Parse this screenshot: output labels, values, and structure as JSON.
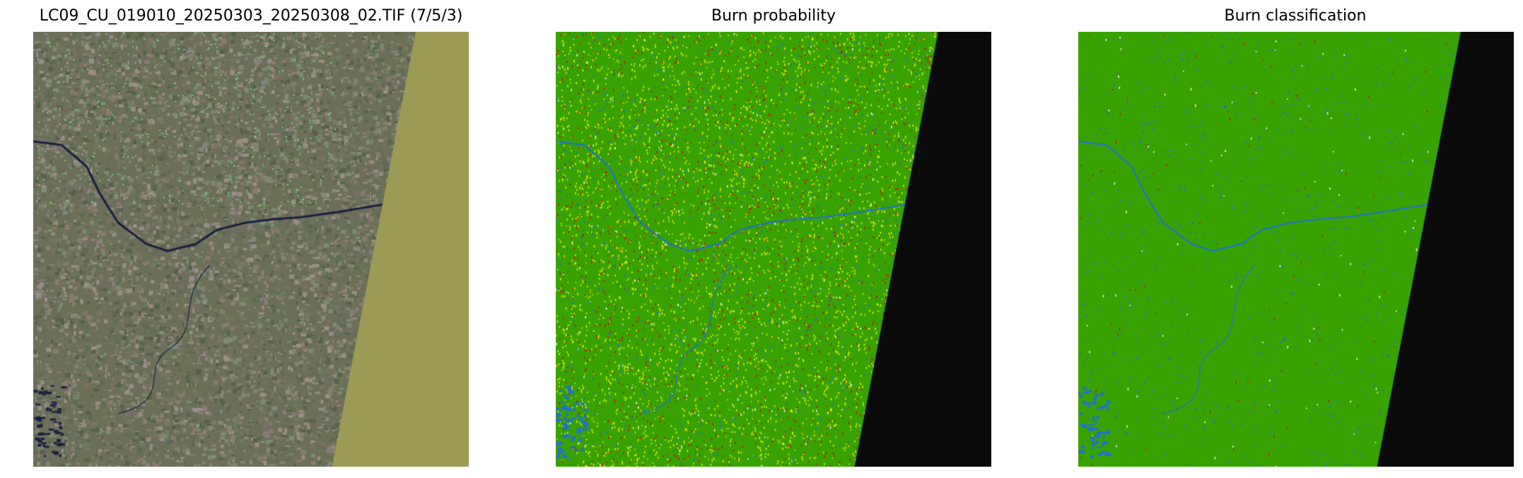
{
  "panels": [
    {
      "title": "LC09_CU_019010_20250303_20250308_02.TIF (7/5/3)",
      "kind": "false-color-composite",
      "nodata_color": "#9b9b56"
    },
    {
      "title": "Burn probability",
      "kind": "probability-map",
      "background_color": "#38a300",
      "nodata_color": "#0a0a0a",
      "water_color": "#1f6fd6",
      "high_color": "#cc1100",
      "mid_color": "#f2f200"
    },
    {
      "title": "Burn classification",
      "kind": "classification-map",
      "background_color": "#38a300",
      "nodata_color": "#0a0a0a",
      "water_color": "#1f6fd6",
      "burn_color": "#cc1100"
    }
  ]
}
